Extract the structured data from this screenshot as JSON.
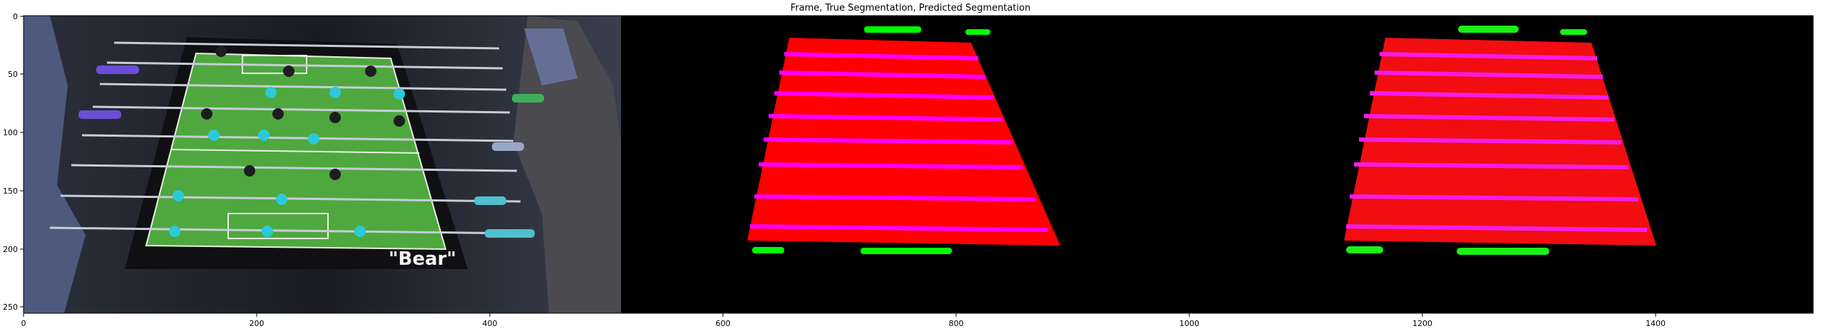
{
  "figure": {
    "title": "Frame, True Segmentation, Predicted Segmentation"
  },
  "axes": {
    "x_ticks": [
      "0",
      "200",
      "400",
      "600",
      "800",
      "1000",
      "1200",
      "1400"
    ],
    "y_ticks": [
      "0",
      "50",
      "100",
      "150",
      "200",
      "250"
    ]
  },
  "colors": {
    "table_red": "#ff0000",
    "rod_magenta": "#ff00ff",
    "goal_green": "#00ff00",
    "background": "#000000"
  },
  "table_logo": "\"Bear\""
}
